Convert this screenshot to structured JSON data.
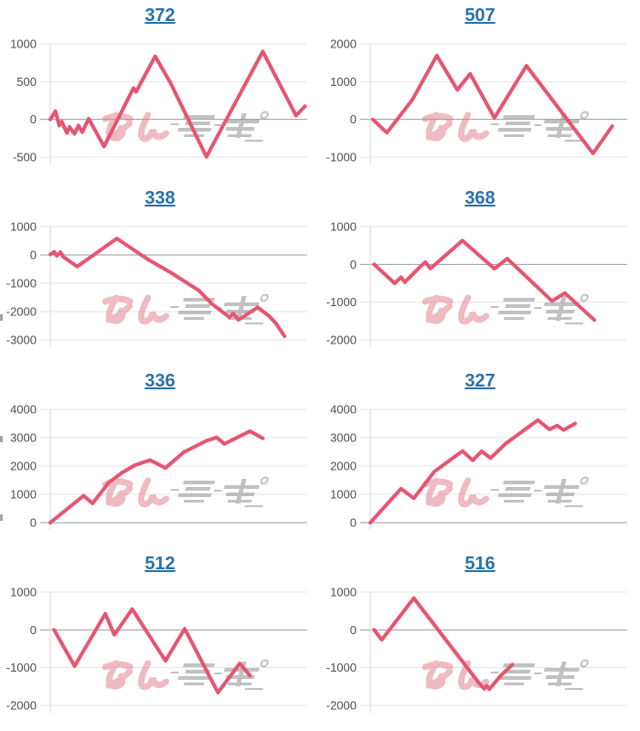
{
  "page": {
    "background": "#ffffff"
  },
  "styles": {
    "line_color": "#e65570",
    "title_color": "#2a72a8",
    "tick_label_color": "#4d4d4d",
    "grid_color": "#e4e4e4",
    "zero_line_color": "#9b9b9b",
    "axis_line_color": "#d8d8d8"
  },
  "watermark": {
    "text": "みんレポ",
    "text_pink": "みん",
    "text_gray": "レポ",
    "pink_color": "#e07a88",
    "gray_color": "#8f8f8f"
  },
  "chart_data": [
    {
      "type": "line",
      "title": "372",
      "y_ticks": [
        1000,
        500,
        0,
        -500
      ],
      "ylim": [
        -500,
        1000
      ],
      "x_unit": "percent_of_plot_width",
      "points": [
        [
          0,
          0
        ],
        [
          2,
          110
        ],
        [
          3.5,
          -80
        ],
        [
          4.5,
          -30
        ],
        [
          6.5,
          -180
        ],
        [
          7.5,
          -100
        ],
        [
          9.5,
          -190
        ],
        [
          11,
          -80
        ],
        [
          12.5,
          -170
        ],
        [
          15,
          10
        ],
        [
          21,
          -360
        ],
        [
          32.5,
          415
        ],
        [
          33.5,
          365
        ],
        [
          41,
          835
        ],
        [
          47,
          480
        ],
        [
          61,
          -495
        ],
        [
          83,
          900
        ],
        [
          96,
          50
        ],
        [
          99.5,
          175
        ]
      ]
    },
    {
      "type": "line",
      "title": "507",
      "y_ticks": [
        2000,
        1000,
        0,
        -1000
      ],
      "ylim": [
        -1000,
        2000
      ],
      "x_unit": "percent_of_plot_width",
      "points": [
        [
          1,
          0
        ],
        [
          6.5,
          -355
        ],
        [
          16.5,
          530
        ],
        [
          26,
          1690
        ],
        [
          34,
          780
        ],
        [
          39,
          1210
        ],
        [
          48.5,
          40
        ],
        [
          61,
          1420
        ],
        [
          87,
          -900
        ],
        [
          94.5,
          -180
        ]
      ]
    },
    {
      "type": "line",
      "title": "338",
      "y_ticks": [
        1000,
        0,
        -1000,
        -2000,
        -3000
      ],
      "ylim": [
        -3000,
        1000
      ],
      "x_unit": "percent_of_plot_width",
      "points": [
        [
          0,
          20
        ],
        [
          1.5,
          110
        ],
        [
          2.5,
          -30
        ],
        [
          4,
          100
        ],
        [
          5,
          -60
        ],
        [
          10.5,
          -410
        ],
        [
          26,
          580
        ],
        [
          38,
          -150
        ],
        [
          47,
          -620
        ],
        [
          58,
          -1250
        ],
        [
          63,
          -1720
        ],
        [
          70,
          -2200
        ],
        [
          71.5,
          -2070
        ],
        [
          73.5,
          -2290
        ],
        [
          81,
          -1850
        ],
        [
          85.5,
          -2160
        ],
        [
          88,
          -2400
        ],
        [
          91.5,
          -2870
        ]
      ]
    },
    {
      "type": "line",
      "title": "368",
      "y_ticks": [
        1000,
        0,
        -1000,
        -2000
      ],
      "ylim": [
        -2000,
        1000
      ],
      "x_unit": "percent_of_plot_width",
      "points": [
        [
          1.5,
          0
        ],
        [
          9.5,
          -500
        ],
        [
          12,
          -340
        ],
        [
          13.5,
          -470
        ],
        [
          20,
          -30
        ],
        [
          21.5,
          60
        ],
        [
          23.5,
          -110
        ],
        [
          36,
          630
        ],
        [
          48.5,
          -115
        ],
        [
          53.5,
          150
        ],
        [
          71,
          -970
        ],
        [
          76,
          -760
        ],
        [
          87.5,
          -1470
        ]
      ]
    },
    {
      "type": "line",
      "title": "336",
      "y_ticks": [
        4000,
        3000,
        2000,
        1000,
        0
      ],
      "ylim": [
        0,
        4000
      ],
      "x_unit": "percent_of_plot_width",
      "points": [
        [
          0,
          0
        ],
        [
          13,
          950
        ],
        [
          16.5,
          680
        ],
        [
          23,
          1430
        ],
        [
          28,
          1760
        ],
        [
          33,
          2030
        ],
        [
          39,
          2210
        ],
        [
          45,
          1930
        ],
        [
          52,
          2480
        ],
        [
          61,
          2890
        ],
        [
          65,
          3010
        ],
        [
          68,
          2780
        ],
        [
          78,
          3230
        ],
        [
          83,
          2980
        ]
      ]
    },
    {
      "type": "line",
      "title": "327",
      "y_ticks": [
        4000,
        3000,
        2000,
        1000,
        0
      ],
      "ylim": [
        0,
        4000
      ],
      "x_unit": "percent_of_plot_width",
      "points": [
        [
          0,
          0
        ],
        [
          12,
          1200
        ],
        [
          17,
          860
        ],
        [
          25,
          1800
        ],
        [
          36,
          2530
        ],
        [
          40,
          2200
        ],
        [
          43.5,
          2520
        ],
        [
          47,
          2280
        ],
        [
          53,
          2800
        ],
        [
          65.5,
          3620
        ],
        [
          70,
          3290
        ],
        [
          73,
          3430
        ],
        [
          75.5,
          3270
        ],
        [
          80,
          3500
        ]
      ]
    },
    {
      "type": "line",
      "title": "512",
      "y_ticks": [
        1000,
        0,
        -1000,
        -2000
      ],
      "ylim": [
        -2000,
        1000
      ],
      "x_unit": "percent_of_plot_width",
      "points": [
        [
          1.5,
          0
        ],
        [
          9.5,
          -960
        ],
        [
          21.5,
          430
        ],
        [
          25,
          -130
        ],
        [
          32,
          550
        ],
        [
          45,
          -820
        ],
        [
          52.5,
          30
        ],
        [
          65.5,
          -1660
        ],
        [
          74,
          -890
        ],
        [
          78,
          -1210
        ]
      ]
    },
    {
      "type": "line",
      "title": "516",
      "y_ticks": [
        1000,
        0,
        -1000,
        -2000
      ],
      "ylim": [
        -2000,
        1000
      ],
      "x_unit": "percent_of_plot_width",
      "points": [
        [
          1.5,
          0
        ],
        [
          4.5,
          -260
        ],
        [
          17,
          840
        ],
        [
          42.5,
          -1410
        ],
        [
          44.5,
          -1560
        ],
        [
          45.5,
          -1480
        ],
        [
          46.5,
          -1570
        ],
        [
          51,
          -1210
        ],
        [
          55.5,
          -920
        ]
      ]
    }
  ]
}
